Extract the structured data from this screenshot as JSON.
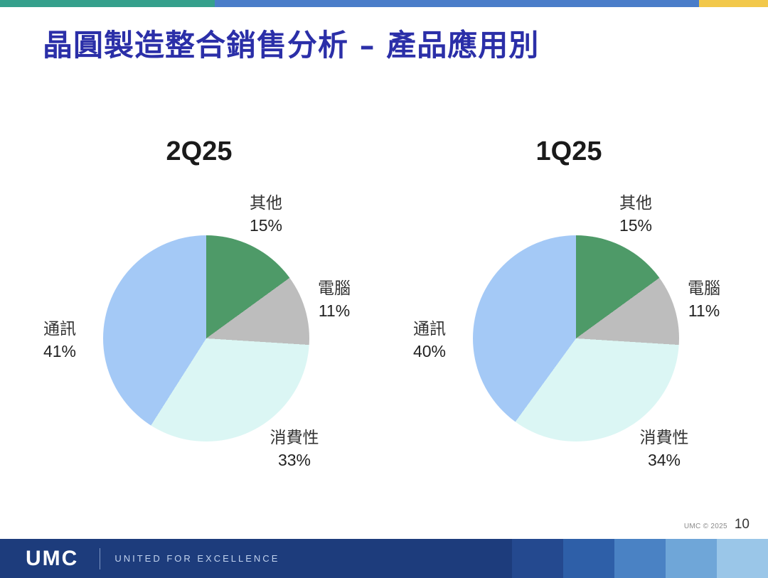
{
  "slide": {
    "title": "晶圓製造整合銷售分析 – 產品應用別",
    "footer": {
      "copyright": "UMC © 2025",
      "page_number": "10"
    },
    "brand_bar": {
      "logo": "UMC",
      "tagline": "UNITED FOR EXCELLENCE"
    },
    "colors": {
      "accent_teal": "#35A08C",
      "accent_blue": "#4A7DC9",
      "accent_yellow": "#F2C84B",
      "title_blue": "#2B2FA8",
      "bar_navy": "#1D3C7C"
    }
  },
  "chart_data": [
    {
      "type": "pie",
      "title": "2Q25",
      "labels": [
        "其他",
        "電腦",
        "消費性",
        "通訊"
      ],
      "values": [
        15,
        11,
        33,
        41
      ],
      "colors": [
        "#4E9A68",
        "#BDBDBD",
        "#DBF6F4",
        "#A4C9F6"
      ],
      "start_angle_deg": 0,
      "direction": "clockwise",
      "legend": "labels around pie with percentages"
    },
    {
      "type": "pie",
      "title": "1Q25",
      "labels": [
        "其他",
        "電腦",
        "消費性",
        "通訊"
      ],
      "values": [
        15,
        11,
        34,
        40
      ],
      "colors": [
        "#4E9A68",
        "#BDBDBD",
        "#DBF6F4",
        "#A4C9F6"
      ],
      "start_angle_deg": 0,
      "direction": "clockwise",
      "legend": "labels around pie with percentages"
    }
  ]
}
